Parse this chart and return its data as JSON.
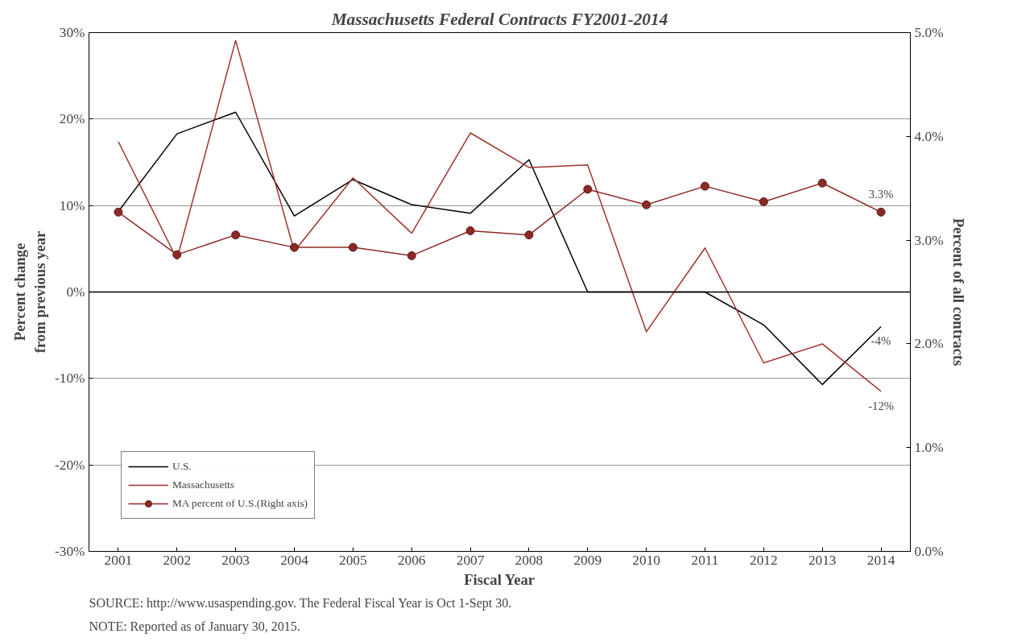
{
  "chart_data": {
    "type": "line",
    "title": "Massachusetts Federal Contracts FY2001-2014",
    "xlabel": "Fiscal Year",
    "ylabel": "Percent change\nfrom previous year",
    "y2label": "Percent of all contracts",
    "categories": [
      "2001",
      "2002",
      "2003",
      "2004",
      "2005",
      "2006",
      "2007",
      "2008",
      "2009",
      "2010",
      "2011",
      "2012",
      "2013",
      "2014"
    ],
    "series": [
      {
        "name": "U.S.",
        "color": "#000000",
        "marker": "none",
        "values": [
          9.3,
          18.3,
          20.8,
          8.8,
          13.0,
          10.1,
          9.1,
          15.3,
          0,
          0,
          0,
          -3.8,
          -10.7,
          -4
        ],
        "value_labels": [
          null,
          null,
          null,
          null,
          null,
          null,
          null,
          null,
          null,
          null,
          null,
          null,
          null,
          "-4%"
        ]
      },
      {
        "name": "Massachusetts",
        "color": "#a0322d",
        "marker": "none",
        "values": [
          17.4,
          3.8,
          29.1,
          4.7,
          13.2,
          6.8,
          18.4,
          14.4,
          14.7,
          -4.6,
          5.1,
          -8.2,
          -6.0,
          -11.5
        ],
        "value_labels": [
          null,
          null,
          null,
          null,
          null,
          null,
          null,
          null,
          null,
          null,
          null,
          null,
          null,
          "-12%"
        ]
      },
      {
        "name": "MA percent of U.S.(Right axis)",
        "color": "#8b2a25",
        "marker": "circle",
        "axis": "y2",
        "values": [
          3.27,
          2.86,
          3.05,
          2.93,
          2.93,
          2.85,
          3.09,
          3.05,
          3.49,
          3.34,
          3.52,
          3.37,
          3.55,
          3.27
        ],
        "value_labels": [
          null,
          null,
          null,
          null,
          null,
          null,
          null,
          null,
          null,
          null,
          null,
          null,
          null,
          "3.3%"
        ]
      }
    ],
    "ylim": [
      -30,
      30
    ],
    "yticks": [
      {
        "value": -30,
        "label": "-30%"
      },
      {
        "value": -20,
        "label": "-20%"
      },
      {
        "value": -10,
        "label": "-10%"
      },
      {
        "value": 0,
        "label": "0%"
      },
      {
        "value": 10,
        "label": "10%"
      },
      {
        "value": 20,
        "label": "20%"
      },
      {
        "value": 30,
        "label": "30%"
      }
    ],
    "y2lim": [
      0,
      5
    ],
    "y2ticks": [
      {
        "value": 0,
        "label": "0.0%"
      },
      {
        "value": 1,
        "label": "1.0%"
      },
      {
        "value": 2,
        "label": "2.0%"
      },
      {
        "value": 3,
        "label": "3.0%"
      },
      {
        "value": 4,
        "label": "4.0%"
      },
      {
        "value": 5,
        "label": "5.0%"
      }
    ],
    "ref_lines": [
      {
        "axis": "y",
        "value": 0,
        "color": "#000000"
      }
    ],
    "grid": "y",
    "legend": "bottom left",
    "line_style": "solid",
    "annotations": [
      "SOURCE: http://www.usaspending.gov. The Federal Fiscal Year is Oct 1-Sept 30.",
      "NOTE:  Reported as of  January 30, 2015."
    ]
  }
}
